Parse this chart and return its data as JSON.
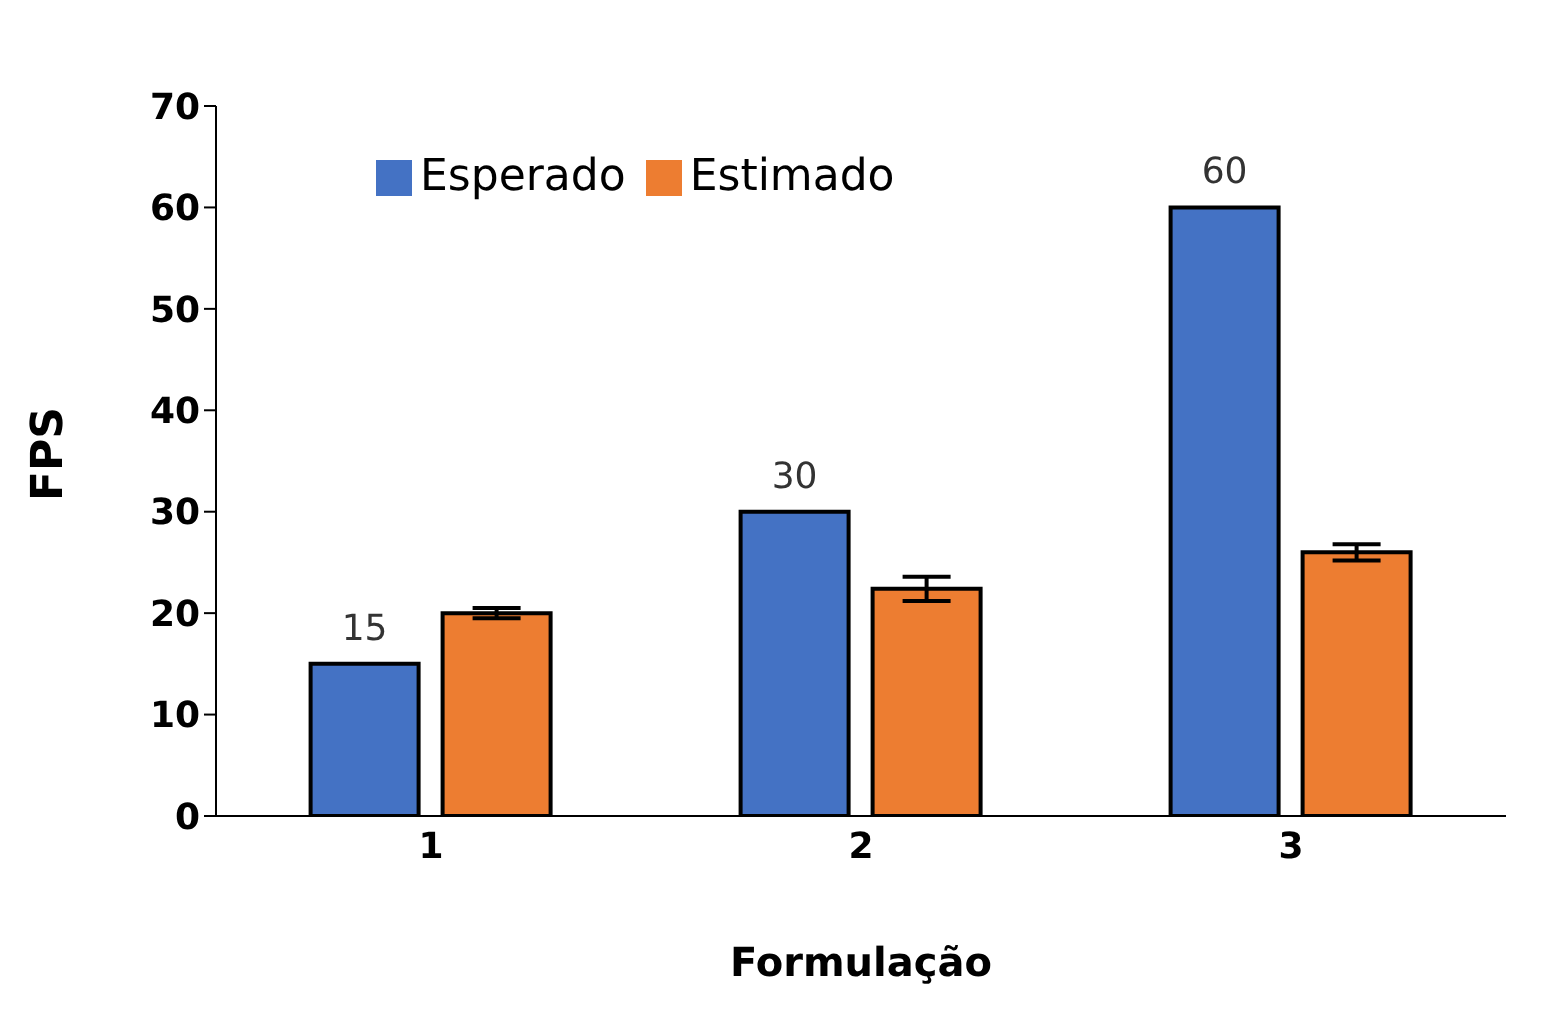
{
  "chart_data": {
    "type": "bar",
    "xlabel": "Formulação",
    "ylabel": "FPS",
    "categories": [
      "1",
      "2",
      "3"
    ],
    "series": [
      {
        "name": "Esperado",
        "color": "#4472c4",
        "values": [
          15,
          30,
          60
        ],
        "value_labels": [
          "15",
          "30",
          "60"
        ]
      },
      {
        "name": "Estimado",
        "color": "#ed7d31",
        "values": [
          20,
          22.4,
          26
        ],
        "errors": [
          0.5,
          1.2,
          0.8
        ]
      }
    ],
    "ylim": [
      0,
      70
    ],
    "yticks": [
      0,
      10,
      20,
      30,
      40,
      50,
      60,
      70
    ],
    "grid": false,
    "legend": "top"
  }
}
